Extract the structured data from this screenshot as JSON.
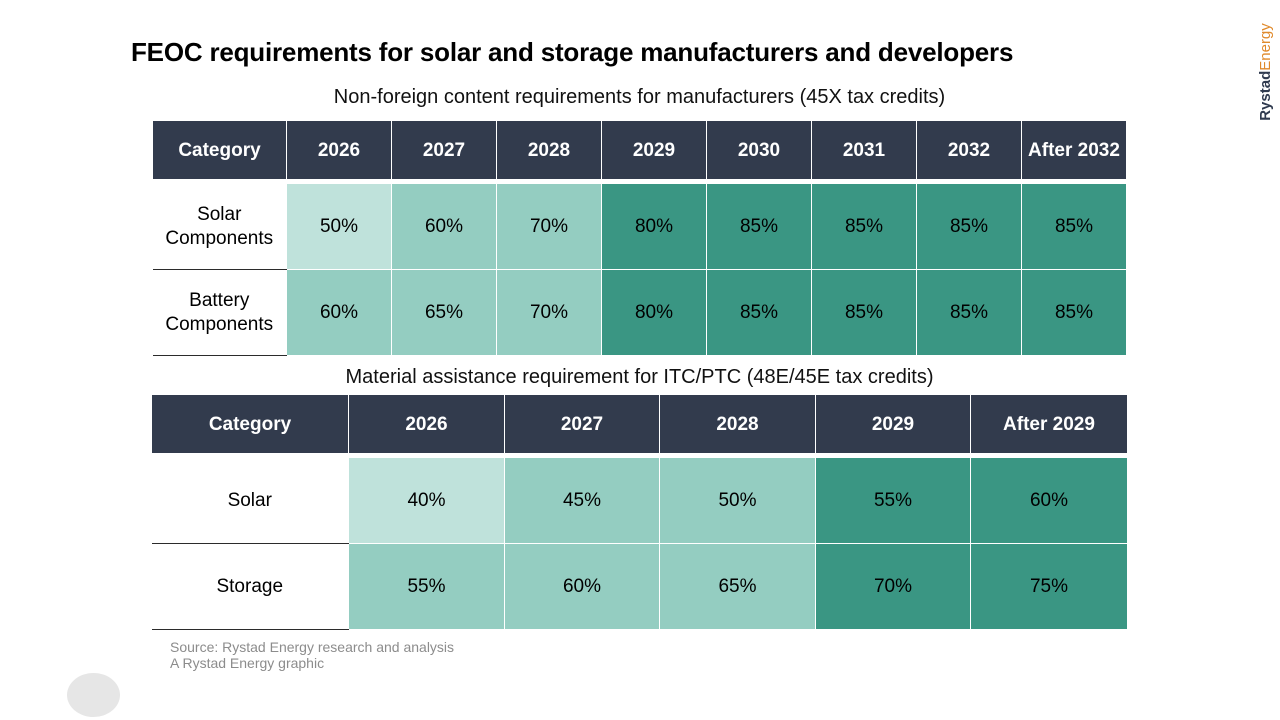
{
  "title": "FEOC requirements for solar and storage manufacturers and developers",
  "logo": {
    "part1": "Rystad",
    "part2": "Energy"
  },
  "colors": {
    "header": "#323b4d",
    "light": "#bfe2db",
    "mid": "#94cdc1",
    "dark": "#3a9683"
  },
  "chart_data": [
    {
      "type": "table",
      "title": "Non-foreign content requirements for manufacturers (45X tax credits)",
      "header_label": "Category",
      "columns": [
        "2026",
        "2027",
        "2028",
        "2029",
        "2030",
        "2031",
        "2032",
        "After 2032"
      ],
      "rows": [
        {
          "category": "Solar Components",
          "values": [
            "50%",
            "60%",
            "70%",
            "80%",
            "85%",
            "85%",
            "85%",
            "85%"
          ]
        },
        {
          "category": "Battery Components",
          "values": [
            "60%",
            "65%",
            "70%",
            "80%",
            "85%",
            "85%",
            "85%",
            "85%"
          ]
        }
      ]
    },
    {
      "type": "table",
      "title": "Material assistance requirement for ITC/PTC (48E/45E tax credits)",
      "header_label": "Category",
      "columns": [
        "2026",
        "2027",
        "2028",
        "2029",
        "After 2029"
      ],
      "rows": [
        {
          "category": "Solar",
          "values": [
            "40%",
            "45%",
            "50%",
            "55%",
            "60%"
          ]
        },
        {
          "category": "Storage",
          "values": [
            "55%",
            "60%",
            "65%",
            "70%",
            "75%"
          ]
        }
      ]
    }
  ],
  "source": {
    "line1": "Source: Rystad Energy research and analysis",
    "line2": "A Rystad Energy graphic"
  }
}
